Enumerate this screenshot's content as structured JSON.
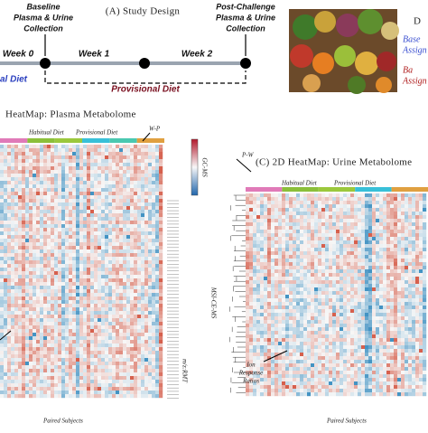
{
  "panel_a": {
    "title": "(A) Study Design",
    "baseline": [
      "Baseline",
      "Plasma & Urine",
      "Collection"
    ],
    "post_challenge": [
      "Post-Challenge",
      "Plasma & Urine",
      "Collection"
    ],
    "weeks": [
      "Week 0",
      "Week 1",
      "Week 2"
    ],
    "habitual_diet": "al Diet",
    "provisional_diet": "Provisional Diet"
  },
  "panel_d": {
    "letter": "D",
    "baseline_assignment": [
      "Base",
      "Assign"
    ],
    "second_assignment": [
      "Ba",
      "Assign"
    ]
  },
  "panel_b": {
    "title": "HeatMap: Plasma Metabolome",
    "habitual_diet": "Habitual Diet",
    "provisional_diet": "Provisional Diet",
    "contrast": "W-P",
    "gc_ms": "GC-MS",
    "msi_ce_ms": "MSI-CE-MS",
    "feature_label": "m/z:RMT",
    "x_label": "Paired Subjects"
  },
  "panel_c": {
    "title": "(C) 2D HeatMap: Urine Metabolome",
    "habitual_diet": "Habitual Diet",
    "provisional_diet": "Provisional Diet",
    "contrast": "P-W",
    "ion_label": [
      "Ion",
      "Response",
      "Ratios"
    ],
    "x_label": "Paired Subjects"
  }
}
